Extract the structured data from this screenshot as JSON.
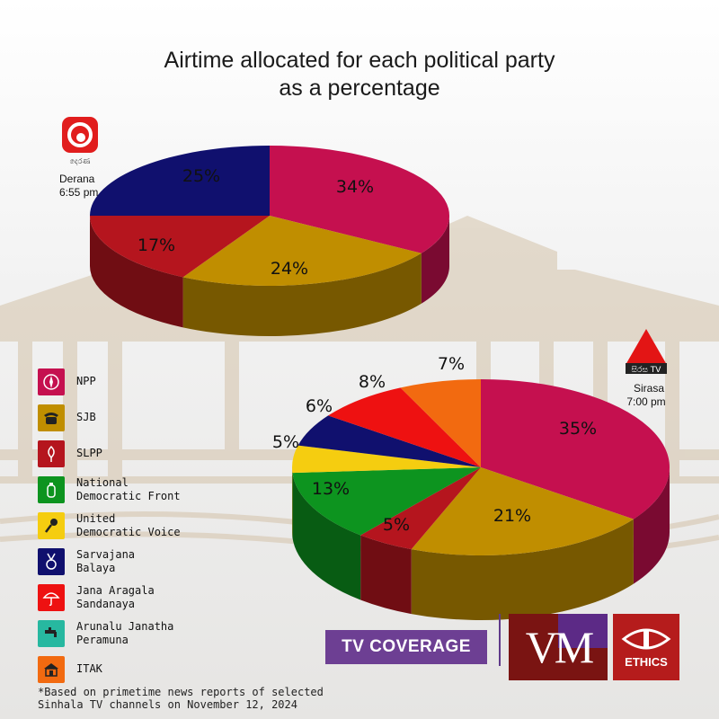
{
  "title_lines": [
    "Airtime allocated for each political party",
    "as a percentage"
  ],
  "channels": [
    {
      "name": "Derana",
      "time": "6:55 pm"
    },
    {
      "name": "Sirasa",
      "time": "7:00 pm",
      "logo_text": "සිරස TV"
    }
  ],
  "colors": {
    "NPP": "#c5104f",
    "SJB": "#c08e00",
    "SLPP": "#b5151e",
    "National Democratic Front": "#0d941f",
    "United Democratic Voice": "#f5cd10",
    "Sarvajana Balaya": "#10106e",
    "Jana Aragala Sandanaya": "#ee1111",
    "Arunalu Janatha Peramuna": "#27b8a0",
    "ITAK": "#f26a10"
  },
  "chart_data": [
    {
      "type": "pie",
      "channel": "Derana 6:55 pm",
      "labels": [
        "NPP",
        "SJB",
        "SLPP",
        "Sarvajana Balaya"
      ],
      "values": [
        34,
        24,
        17,
        25
      ],
      "value_labels": [
        "34%",
        "24%",
        "17%",
        "25%"
      ]
    },
    {
      "type": "pie",
      "channel": "Sirasa 7:00 pm",
      "labels": [
        "NPP",
        "SJB",
        "SLPP",
        "National Democratic Front",
        "United Democratic Voice",
        "Sarvajana Balaya",
        "Jana Aragala Sandanaya",
        "ITAK"
      ],
      "values": [
        35,
        21,
        5,
        13,
        5,
        6,
        8,
        7
      ],
      "value_labels": [
        "35%",
        "21%",
        "5%",
        "13%",
        "5%",
        "6%",
        "8%",
        "7%"
      ]
    }
  ],
  "legend": [
    {
      "label": "NPP",
      "color": "#c5104f",
      "icon": "compass-icon"
    },
    {
      "label": "SJB",
      "color": "#c08e00",
      "icon": "telephone-icon"
    },
    {
      "label": "SLPP",
      "color": "#b5151e",
      "icon": "flower-bud-icon"
    },
    {
      "label": "National\nDemocratic Front",
      "color": "#0d941f",
      "icon": "gas-cylinder-icon"
    },
    {
      "label": "United\nDemocratic Voice",
      "color": "#f5cd10",
      "icon": "microphone-icon"
    },
    {
      "label": "Sarvajana\nBalaya",
      "color": "#10106e",
      "icon": "medal-icon"
    },
    {
      "label": "Jana Aragala\nSandanaya",
      "color": "#ee1111",
      "icon": "umbrella-icon"
    },
    {
      "label": "Arunalu Janatha\nPeramuna",
      "color": "#27b8a0",
      "icon": "water-tap-icon"
    },
    {
      "label": "ITAK",
      "color": "#f26a10",
      "icon": "house-icon"
    }
  ],
  "footnote_lines": [
    "*Based on primetime news reports of selected",
    "Sinhala TV channels on November 12, 2024"
  ],
  "badge": {
    "tv_coverage": "TV COVERAGE",
    "vm_logo_text": "VM",
    "ethics_logo_text": "ETHICS"
  }
}
